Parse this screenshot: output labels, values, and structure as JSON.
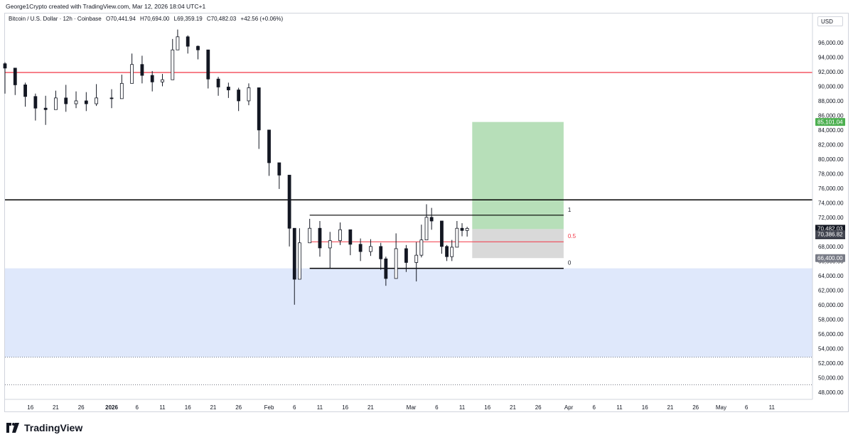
{
  "header": {
    "caption": "George1Crypto created with TradingView.com, Mar 12, 2026 18:04 UTC+1"
  },
  "symbol": {
    "name": "Bitcoin / U.S. Dollar · 12h · Coinbase",
    "open": "O70,441.94",
    "high": "H70,694.00",
    "low": "L69,359.19",
    "close": "C70,482.03",
    "change": "+42.56 (+0.06%)"
  },
  "currency": "USD",
  "brand": "TradingView",
  "colors": {
    "up": "#131722",
    "down": "#131722",
    "resistance": "#f23645",
    "level_black": "#000000",
    "target_zone": "#b7dfb9",
    "stop_zone": "#d9d9d9",
    "support_zone": "#dfe8fb",
    "price_tag": "#131722",
    "green_tag": "#4caf50",
    "gray_tag": "#787b86"
  },
  "chart_data": {
    "type": "candlestick",
    "title": "Bitcoin / U.S. Dollar · 12h · Coinbase",
    "ylim": [
      47000,
      100000
    ],
    "y_ticks": [
      48000,
      50000,
      52000,
      54000,
      56000,
      58000,
      60000,
      62000,
      64000,
      66000,
      68000,
      70000,
      72000,
      74000,
      76000,
      78000,
      80000,
      82000,
      84000,
      86000,
      88000,
      90000,
      92000,
      94000,
      96000
    ],
    "y_tick_labels": [
      "48,000.00",
      "50,000.00",
      "52,000.00",
      "54,000.00",
      "56,000.00",
      "58,000.00",
      "60,000.00",
      "62,000.00",
      "64,000.00",
      "66,000.00",
      "68,000.00",
      "70,000.00",
      "72,000.00",
      "74,000.00",
      "76,000.00",
      "78,000.00",
      "80,000.00",
      "82,000.00",
      "84,000.00",
      "86,000.00",
      "88,000.00",
      "90,000.00",
      "92,000.00",
      "94,000.00",
      "96,000.00"
    ],
    "x_range": [
      "2025-12-11",
      "2026-05-19"
    ],
    "x_ticks": [
      {
        "date": "2025-12-16",
        "label": "16"
      },
      {
        "date": "2025-12-21",
        "label": "21"
      },
      {
        "date": "2025-12-26",
        "label": "26"
      },
      {
        "date": "2026-01-01",
        "label": "2026"
      },
      {
        "date": "2026-01-06",
        "label": "6"
      },
      {
        "date": "2026-01-11",
        "label": "11"
      },
      {
        "date": "2026-01-16",
        "label": "16"
      },
      {
        "date": "2026-01-21",
        "label": "21"
      },
      {
        "date": "2026-01-26",
        "label": "26"
      },
      {
        "date": "2026-02-01",
        "label": "Feb"
      },
      {
        "date": "2026-02-06",
        "label": "6"
      },
      {
        "date": "2026-02-11",
        "label": "11"
      },
      {
        "date": "2026-02-16",
        "label": "16"
      },
      {
        "date": "2026-02-21",
        "label": "21"
      },
      {
        "date": "2026-03-01",
        "label": "Mar"
      },
      {
        "date": "2026-03-06",
        "label": "6"
      },
      {
        "date": "2026-03-11",
        "label": "11"
      },
      {
        "date": "2026-03-16",
        "label": "16"
      },
      {
        "date": "2026-03-21",
        "label": "21"
      },
      {
        "date": "2026-03-26",
        "label": "26"
      },
      {
        "date": "2026-04-01",
        "label": "Apr"
      },
      {
        "date": "2026-04-06",
        "label": "6"
      },
      {
        "date": "2026-04-11",
        "label": "11"
      },
      {
        "date": "2026-04-16",
        "label": "16"
      },
      {
        "date": "2026-04-21",
        "label": "21"
      },
      {
        "date": "2026-04-26",
        "label": "26"
      },
      {
        "date": "2026-05-01",
        "label": "May"
      },
      {
        "date": "2026-05-06",
        "label": "6"
      },
      {
        "date": "2026-05-11",
        "label": "11"
      }
    ],
    "close_path": [
      {
        "date": "2025-12-11",
        "close": 92500,
        "high": 93300,
        "low": 89000
      },
      {
        "date": "2025-12-13",
        "close": 90200,
        "high": 91500,
        "low": 88800
      },
      {
        "date": "2025-12-15",
        "close": 88600,
        "high": 90500,
        "low": 87200
      },
      {
        "date": "2025-12-17",
        "close": 87000,
        "high": 89000,
        "low": 85300
      },
      {
        "date": "2025-12-19",
        "close": 86800,
        "high": 88700,
        "low": 84700
      },
      {
        "date": "2025-12-21",
        "close": 88400,
        "high": 89400,
        "low": 87100
      },
      {
        "date": "2025-12-23",
        "close": 87600,
        "high": 90200,
        "low": 86500
      },
      {
        "date": "2025-12-25",
        "close": 88000,
        "high": 89300,
        "low": 87000
      },
      {
        "date": "2025-12-27",
        "close": 87600,
        "high": 89200,
        "low": 86600
      },
      {
        "date": "2025-12-29",
        "close": 88400,
        "high": 90300,
        "low": 87300
      },
      {
        "date": "2026-01-01",
        "close": 88300,
        "high": 89600,
        "low": 87000
      },
      {
        "date": "2026-01-03",
        "close": 90400,
        "high": 91600,
        "low": 89200
      },
      {
        "date": "2026-01-05",
        "close": 93000,
        "high": 94500,
        "low": 91800
      },
      {
        "date": "2026-01-07",
        "close": 91500,
        "high": 94200,
        "low": 90400
      },
      {
        "date": "2026-01-09",
        "close": 90600,
        "high": 92100,
        "low": 89300
      },
      {
        "date": "2026-01-11",
        "close": 90900,
        "high": 91700,
        "low": 90000
      },
      {
        "date": "2026-01-13",
        "close": 95000,
        "high": 96500,
        "low": 92800
      },
      {
        "date": "2026-01-14",
        "close": 96800,
        "high": 97800,
        "low": 95000
      },
      {
        "date": "2026-01-16",
        "close": 95500,
        "high": 97000,
        "low": 94500
      },
      {
        "date": "2026-01-18",
        "close": 95000,
        "high": 95600,
        "low": 93700
      },
      {
        "date": "2026-01-20",
        "close": 91000,
        "high": 93500,
        "low": 89700
      },
      {
        "date": "2026-01-22",
        "close": 89900,
        "high": 91300,
        "low": 88700
      },
      {
        "date": "2026-01-24",
        "close": 89500,
        "high": 90500,
        "low": 88400
      },
      {
        "date": "2026-01-26",
        "close": 88000,
        "high": 89800,
        "low": 86600
      },
      {
        "date": "2026-01-28",
        "close": 89800,
        "high": 90400,
        "low": 87400
      },
      {
        "date": "2026-01-30",
        "close": 84000,
        "high": 88000,
        "low": 81400
      },
      {
        "date": "2026-02-01",
        "close": 79500,
        "high": 82500,
        "low": 77700
      },
      {
        "date": "2026-02-03",
        "close": 77800,
        "high": 79000,
        "low": 75900
      },
      {
        "date": "2026-02-05",
        "close": 70500,
        "high": 76000,
        "low": 68000
      },
      {
        "date": "2026-02-06",
        "close": 63500,
        "high": 70000,
        "low": 60000
      },
      {
        "date": "2026-02-07",
        "close": 68500,
        "high": 70500,
        "low": 64000
      },
      {
        "date": "2026-02-09",
        "close": 70500,
        "high": 71800,
        "low": 68800
      },
      {
        "date": "2026-02-11",
        "close": 67800,
        "high": 71500,
        "low": 66600
      },
      {
        "date": "2026-02-13",
        "close": 68800,
        "high": 70000,
        "low": 65000
      },
      {
        "date": "2026-02-15",
        "close": 70300,
        "high": 71300,
        "low": 68200
      },
      {
        "date": "2026-02-17",
        "close": 68300,
        "high": 70200,
        "low": 66800
      },
      {
        "date": "2026-02-19",
        "close": 67300,
        "high": 69100,
        "low": 66000
      },
      {
        "date": "2026-02-21",
        "close": 68000,
        "high": 69000,
        "low": 66700
      },
      {
        "date": "2026-02-23",
        "close": 66300,
        "high": 68500,
        "low": 64800
      },
      {
        "date": "2026-02-24",
        "close": 63600,
        "high": 66600,
        "low": 62600
      },
      {
        "date": "2026-02-26",
        "close": 67700,
        "high": 69800,
        "low": 65800
      },
      {
        "date": "2026-02-28",
        "close": 65800,
        "high": 68200,
        "low": 64500
      },
      {
        "date": "2026-03-02",
        "close": 66800,
        "high": 68600,
        "low": 63200
      },
      {
        "date": "2026-03-03",
        "close": 68900,
        "high": 71000,
        "low": 66500
      },
      {
        "date": "2026-03-04",
        "close": 72000,
        "high": 73800,
        "low": 69000
      },
      {
        "date": "2026-03-05",
        "close": 71500,
        "high": 73300,
        "low": 70300
      },
      {
        "date": "2026-03-07",
        "close": 68000,
        "high": 70300,
        "low": 67000
      },
      {
        "date": "2026-03-08",
        "close": 66600,
        "high": 68200,
        "low": 66000
      },
      {
        "date": "2026-03-09",
        "close": 67900,
        "high": 68900,
        "low": 66000
      },
      {
        "date": "2026-03-10",
        "close": 70500,
        "high": 71500,
        "low": 68800
      },
      {
        "date": "2026-03-11",
        "close": 70200,
        "high": 71200,
        "low": 69400
      },
      {
        "date": "2026-03-12",
        "close": 70482,
        "high": 70694,
        "low": 69359
      }
    ],
    "levels": {
      "resistance_red": 91900,
      "horizontal_black": 74400,
      "fib_1": 72300,
      "fib_05": 68650,
      "fib_0": 65000,
      "target_price": 85101.04,
      "stop_price": 66400,
      "last_price": 70482.03,
      "entry_price": 70386.82,
      "support_zone_top": 65000,
      "support_zone_bottom": 52800,
      "dotted_1": 52800,
      "dotted_2": 49000
    },
    "fib_labels": {
      "fib_1": "1",
      "fib_05": "0.5",
      "fib_0": "0"
    },
    "fib_start_date": "2026-02-09",
    "position_start_date": "2026-03-13",
    "position_end_date": "2026-03-31",
    "price_tags": {
      "target": "85,101.04",
      "last": "70,482.03",
      "countdown": "06:55:59",
      "entry": "70,386.82",
      "stop": "66,400.00"
    }
  }
}
